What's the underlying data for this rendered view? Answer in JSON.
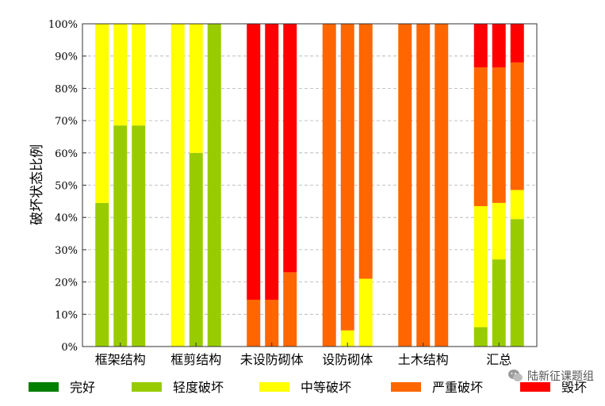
{
  "chart_data": {
    "type": "bar",
    "stacked": true,
    "title": "",
    "ylabel": "破坏状态比例",
    "xlabel": "",
    "ylim": [
      0,
      100
    ],
    "yticks": [
      "0%",
      "10%",
      "20%",
      "30%",
      "40%",
      "50%",
      "60%",
      "70%",
      "80%",
      "90%",
      "100%"
    ],
    "grid": "horizontal-dashed",
    "legend_position": "bottom",
    "groups": [
      "框架结构",
      "框剪结构",
      "未设防砌体",
      "设防砌体",
      "土木结构",
      "汇总"
    ],
    "bars_per_group": 3,
    "series": [
      {
        "name": "完好",
        "color": "#007f00",
        "values": [
          [
            0,
            0,
            0
          ],
          [
            0,
            0,
            0
          ],
          [
            0,
            0,
            0
          ],
          [
            0,
            0,
            0
          ],
          [
            0,
            0,
            0
          ],
          [
            0,
            0,
            0
          ]
        ]
      },
      {
        "name": "轻度破坏",
        "color": "#99cc00",
        "values": [
          [
            44.5,
            68.5,
            68.5
          ],
          [
            0,
            60,
            100
          ],
          [
            0,
            0,
            0
          ],
          [
            0,
            0,
            0
          ],
          [
            0,
            0,
            0
          ],
          [
            6,
            27,
            39.5
          ]
        ]
      },
      {
        "name": "中等破坏",
        "color": "#ffff00",
        "values": [
          [
            55.5,
            31.5,
            31.5
          ],
          [
            100,
            40,
            0
          ],
          [
            0,
            0,
            0
          ],
          [
            0,
            5,
            21
          ],
          [
            0,
            0,
            0
          ],
          [
            37.5,
            17.5,
            9
          ]
        ]
      },
      {
        "name": "严重破坏",
        "color": "#ff6600",
        "values": [
          [
            0,
            0,
            0
          ],
          [
            0,
            0,
            0
          ],
          [
            14.5,
            14.5,
            23
          ],
          [
            100,
            95,
            79
          ],
          [
            100,
            100,
            100
          ],
          [
            43,
            42,
            39.5
          ]
        ]
      },
      {
        "name": "毁坏",
        "color": "#ff0000",
        "values": [
          [
            0,
            0,
            0
          ],
          [
            0,
            0,
            0
          ],
          [
            85.5,
            85.5,
            77
          ],
          [
            0,
            0,
            0
          ],
          [
            0,
            0,
            0
          ],
          [
            13.5,
            13.5,
            12
          ]
        ]
      }
    ]
  },
  "watermark": {
    "text": "陆新征课题组"
  }
}
